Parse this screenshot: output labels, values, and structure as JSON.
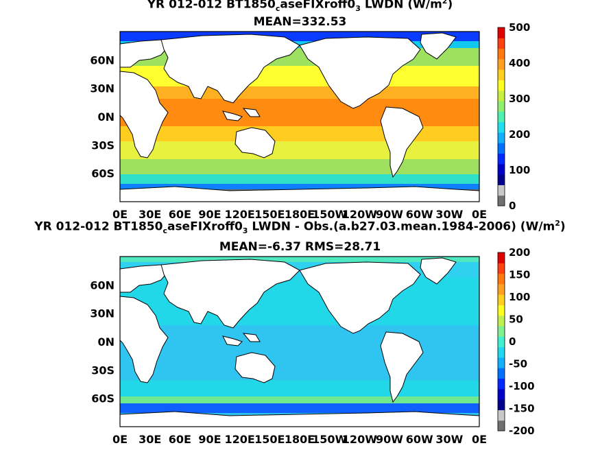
{
  "chart_data": [
    {
      "type": "heatmap",
      "title_main": "YR 012-012 BT1850",
      "title_sub1": "c",
      "title_mid": "aseFIXroff0",
      "title_sub2": "3",
      "title_end": " LWDN (W/m",
      "title_sup": "2",
      "title_close": ")",
      "subtitle": "MEAN=332.53",
      "xtick_labels": [
        "0E",
        "30E",
        "60E",
        "90E",
        "120E",
        "150E",
        "180E",
        "150W",
        "120W",
        "90W",
        "60W",
        "30W",
        "0E"
      ],
      "ytick_labels": [
        "60N",
        "30N",
        "0N",
        "30S",
        "60S"
      ],
      "colorbar_labels": [
        "500",
        "400",
        "300",
        "200",
        "100",
        "0"
      ],
      "xlim": [
        0,
        360
      ],
      "ylim": [
        -90,
        90
      ],
      "colorbar_range": [
        0,
        500
      ],
      "land_color": "#ffffff",
      "missing_color": "#707070"
    },
    {
      "type": "heatmap",
      "title_main": "YR 012-012 BT1850",
      "title_sub1": "c",
      "title_mid": "aseFIXroff0",
      "title_sub2": "3",
      "title_end": " LWDN - Obs.(a.b27.03.mean.1984-2006) (W/m",
      "title_sup": "2",
      "title_close": ")",
      "subtitle": "MEAN=-6.37 RMS=28.71",
      "xtick_labels": [
        "0E",
        "30E",
        "60E",
        "90E",
        "120E",
        "150E",
        "180E",
        "150W",
        "120W",
        "90W",
        "60W",
        "30W",
        "0E"
      ],
      "ytick_labels": [
        "60N",
        "30N",
        "0N",
        "30S",
        "60S"
      ],
      "colorbar_labels": [
        "200",
        "150",
        "100",
        "50",
        "0",
        "-50",
        "-100",
        "-150",
        "-200"
      ],
      "xlim": [
        0,
        360
      ],
      "ylim": [
        -90,
        90
      ],
      "colorbar_range": [
        -200,
        200
      ],
      "land_color": "#ffffff",
      "missing_color": "#707070"
    }
  ]
}
